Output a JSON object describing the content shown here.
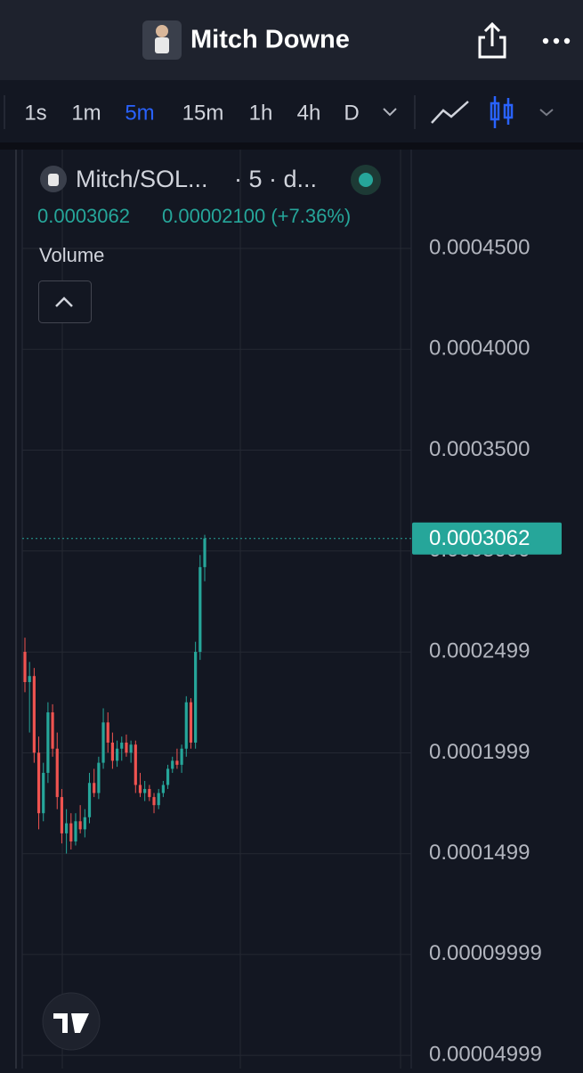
{
  "header": {
    "title": "Mitch Downe"
  },
  "toolbar": {
    "intervals": [
      "1s",
      "1m",
      "5m",
      "15m",
      "1h",
      "4h",
      "D"
    ],
    "active": 2
  },
  "chart_data": {
    "type": "candlestick",
    "symbol": "Mitch/SOL...",
    "details": "· 5 · d...",
    "change": "0.00002100 (+7.36%)",
    "indicator": "Volume",
    "last_price": 0.0003062,
    "colors": {
      "up": "#26a69a",
      "down": "#ef5350"
    },
    "grid": true,
    "ylim": [
      4.34e-05,
      0.000499
    ],
    "yticks": [
      {
        "value": 0.00045,
        "label": "0.0004500"
      },
      {
        "value": 0.0004,
        "label": "0.0004000"
      },
      {
        "value": 0.00035,
        "label": "0.0003500"
      },
      {
        "value": 0.0003,
        "label": "0.0003000"
      },
      {
        "value": 0.0002499,
        "label": "0.0002499"
      },
      {
        "value": 0.0001999,
        "label": "0.0001999"
      },
      {
        "value": 0.0001499,
        "label": "0.0001499"
      },
      {
        "value": 9.999e-05,
        "label": "0.00009999"
      },
      {
        "value": 4.999e-05,
        "label": "0.00004999"
      }
    ],
    "open": [
      0.00025,
      0.000235,
      0.000238,
      0.0002,
      0.00017,
      0.00019,
      0.00022,
      0.000202,
      0.000178,
      0.00016,
      0.000165,
      0.000156,
      0.000166,
      0.000162,
      0.000168,
      0.000185,
      0.00018,
      0.000195,
      0.000215,
      0.000205,
      0.000196,
      0.000202,
      0.000205,
      0.0002,
      0.000204,
      0.000184,
      0.00018,
      0.000182,
      0.000178,
      0.000174,
      0.00018,
      0.000184,
      0.000192,
      0.000196,
      0.000194,
      0.000202,
      0.000225,
      0.000205,
      0.00025,
      0.000292
    ],
    "high": [
      0.000257,
      0.000245,
      0.000242,
      0.000208,
      0.000195,
      0.000225,
      0.000224,
      0.00021,
      0.000182,
      0.000172,
      0.00017,
      0.00017,
      0.000174,
      0.000172,
      0.00019,
      0.000192,
      0.000198,
      0.000222,
      0.00022,
      0.00021,
      0.000206,
      0.000208,
      0.000209,
      0.000206,
      0.000206,
      0.00019,
      0.000186,
      0.000184,
      0.00018,
      0.000182,
      0.000186,
      0.000194,
      0.000198,
      0.000202,
      0.000204,
      0.000228,
      0.000227,
      0.000255,
      0.000298,
      0.000308
    ],
    "low": [
      0.00023,
      0.00021,
      0.000195,
      0.000162,
      0.000166,
      0.000185,
      0.000198,
      0.000172,
      0.000155,
      0.00015,
      0.000152,
      0.000154,
      0.00016,
      0.000158,
      0.000165,
      0.000178,
      0.000177,
      0.000192,
      0.0002,
      0.000192,
      0.000193,
      0.000196,
      0.000198,
      0.000195,
      0.00018,
      0.000178,
      0.000176,
      0.000176,
      0.00017,
      0.000172,
      0.000178,
      0.000182,
      0.00019,
      0.000192,
      0.00019,
      0.000198,
      0.000202,
      0.000202,
      0.000246,
      0.000285
    ],
    "close": [
      0.000235,
      0.000238,
      0.0002,
      0.00017,
      0.00019,
      0.00022,
      0.000202,
      0.000178,
      0.00016,
      0.000165,
      0.000156,
      0.000166,
      0.000162,
      0.000168,
      0.000185,
      0.00018,
      0.000195,
      0.000215,
      0.000205,
      0.000196,
      0.000202,
      0.000205,
      0.0002,
      0.000204,
      0.000184,
      0.00018,
      0.000182,
      0.000178,
      0.000174,
      0.00018,
      0.000184,
      0.000192,
      0.000196,
      0.000194,
      0.000202,
      0.000225,
      0.000205,
      0.00025,
      0.000292,
      0.0003062
    ]
  }
}
